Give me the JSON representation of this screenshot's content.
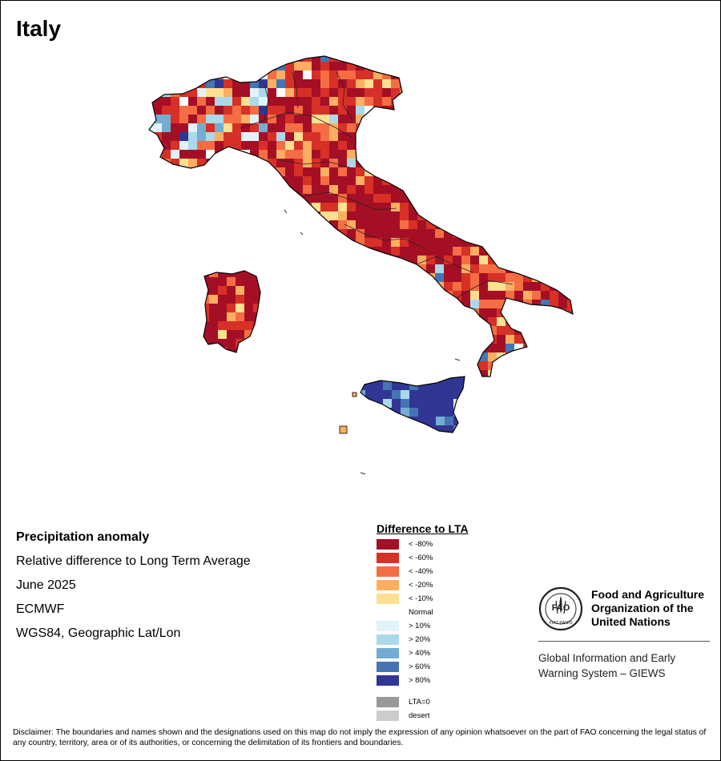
{
  "title": "Italy",
  "info": {
    "heading": "Precipitation anomaly",
    "line1": "Relative difference to Long Term Average",
    "line2": "June 2025",
    "line3": "ECMWF",
    "line4": "WGS84, Geographic Lat/Lon"
  },
  "legend": {
    "title": "Difference to LTA",
    "items": [
      {
        "label": "< -80%",
        "color": "#a50f26",
        "key": "c80n"
      },
      {
        "label": "< -60%",
        "color": "#d73027",
        "key": "c60n"
      },
      {
        "label": "< -40%",
        "color": "#f46d43",
        "key": "c40n"
      },
      {
        "label": "< -20%",
        "color": "#fdae61",
        "key": "c20n"
      },
      {
        "label": "< -10%",
        "color": "#fee090",
        "key": "c10n"
      },
      {
        "label": "Normal",
        "color": "#ffffff",
        "key": "norm"
      },
      {
        "label": "> 10%",
        "color": "#e0f3f8",
        "key": "c10p"
      },
      {
        "label": "> 20%",
        "color": "#abd9e9",
        "key": "c20p"
      },
      {
        "label": "> 40%",
        "color": "#74add1",
        "key": "c40p"
      },
      {
        "label": "> 60%",
        "color": "#4575b4",
        "key": "c60p"
      },
      {
        "label": "> 80%",
        "color": "#313695",
        "key": "c80p"
      },
      {
        "label": "LTA=0",
        "color": "#999999",
        "key": "lta0"
      },
      {
        "label": "desert",
        "color": "#cccccc",
        "key": "desert"
      }
    ]
  },
  "map_regions": [
    {
      "name": "north-italy",
      "dominant": "c60n"
    },
    {
      "name": "central-italy",
      "dominant": "c80n"
    },
    {
      "name": "south-italy",
      "dominant": "c60n"
    },
    {
      "name": "sardinia",
      "dominant": "c80n"
    },
    {
      "name": "sicily",
      "dominant": "c80p"
    }
  ],
  "organization": {
    "name": "Food and Agriculture Organization of the United Nations",
    "logo_text": "FAO",
    "logo_motto": "FIAT PANIS",
    "system": "Global Information and Early Warning System – GIEWS"
  },
  "disclaimer": "Disclaimer: The boundaries and names shown and the designations used on this map do not imply the expression of any opinion whatsoever on the part of FAO concerning the legal status of any country, territory, area or of its authorities, or concerning the delimitation of its frontiers and boundaries."
}
